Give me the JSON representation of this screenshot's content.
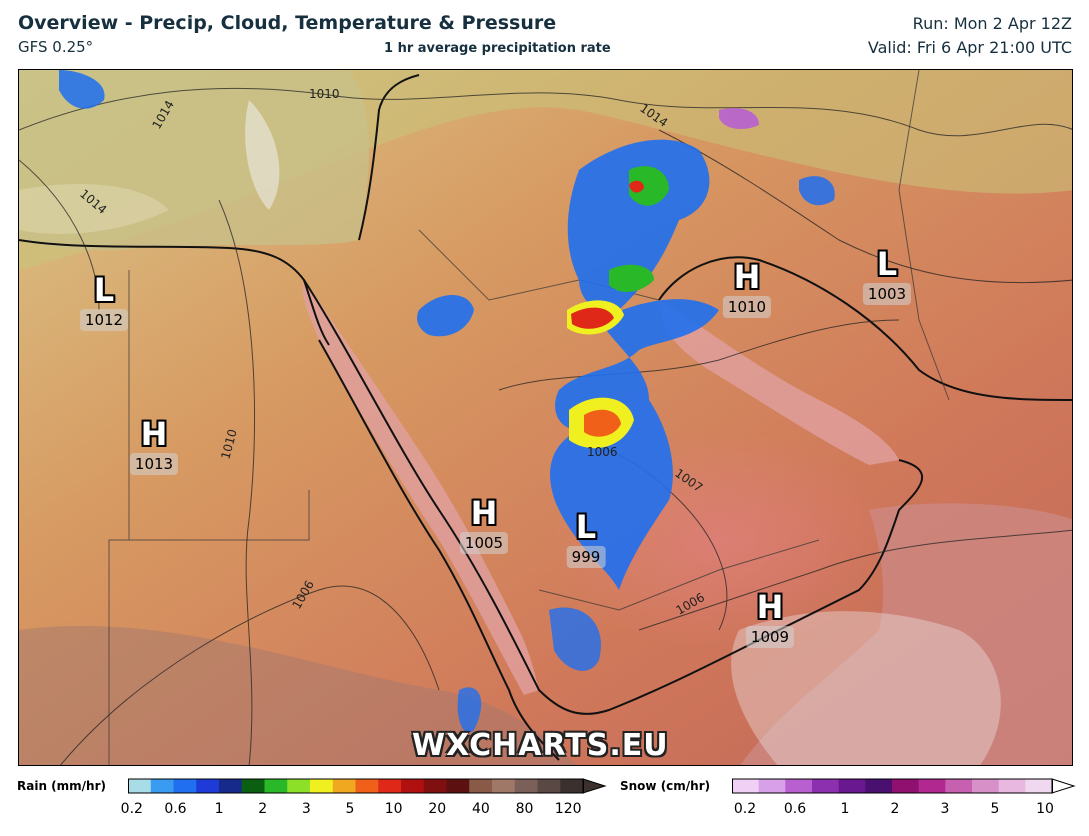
{
  "header": {
    "title": "Overview - Precip, Cloud, Temperature & Pressure",
    "model": "GFS 0.25°",
    "subtitle": "1 hr average precipitation rate",
    "run": "Run: Mon 2 Apr 12Z",
    "valid": "Valid: Fri 6 Apr 21:00 UTC"
  },
  "pressure_centers": [
    {
      "type": "L",
      "value": "1012"
    },
    {
      "type": "H",
      "value": "1013"
    },
    {
      "type": "H",
      "value": "1005"
    },
    {
      "type": "L",
      "value": "999"
    },
    {
      "type": "H",
      "value": "1010"
    },
    {
      "type": "L",
      "value": "1003"
    },
    {
      "type": "H",
      "value": "1009"
    }
  ],
  "isobar_labels": [
    "1010",
    "1014",
    "1014",
    "1010",
    "1006",
    "1006",
    "1007",
    "1006",
    "1014"
  ],
  "watermark": "WXCHARTS.EU",
  "rain_legend": {
    "label": "Rain (mm/hr)",
    "ticks": [
      "0.2",
      "0.6",
      "1",
      "2",
      "3",
      "5",
      "10",
      "20",
      "40",
      "80",
      "120"
    ],
    "colors": [
      "#a8dde8",
      "#3a9cf0",
      "#1f6ff0",
      "#1e3bd8",
      "#162a8c",
      "#0a6010",
      "#28b828",
      "#8ce028",
      "#f0f020",
      "#f0a820",
      "#f06018",
      "#e02818",
      "#b01010",
      "#801010",
      "#5c1010",
      "#8a5a48",
      "#a07868",
      "#7a6058",
      "#5a4844",
      "#3c302e"
    ]
  },
  "snow_legend": {
    "label": "Snow (cm/hr)",
    "ticks": [
      "0.2",
      "0.6",
      "1",
      "2",
      "3",
      "5",
      "10"
    ],
    "colors": [
      "#f0d0f4",
      "#d8a0e8",
      "#b860d0",
      "#8c30b0",
      "#6a1890",
      "#4a1070",
      "#901070",
      "#b02890",
      "#c860b0",
      "#d890c8",
      "#e8b8e0",
      "#f0d8f0"
    ]
  }
}
